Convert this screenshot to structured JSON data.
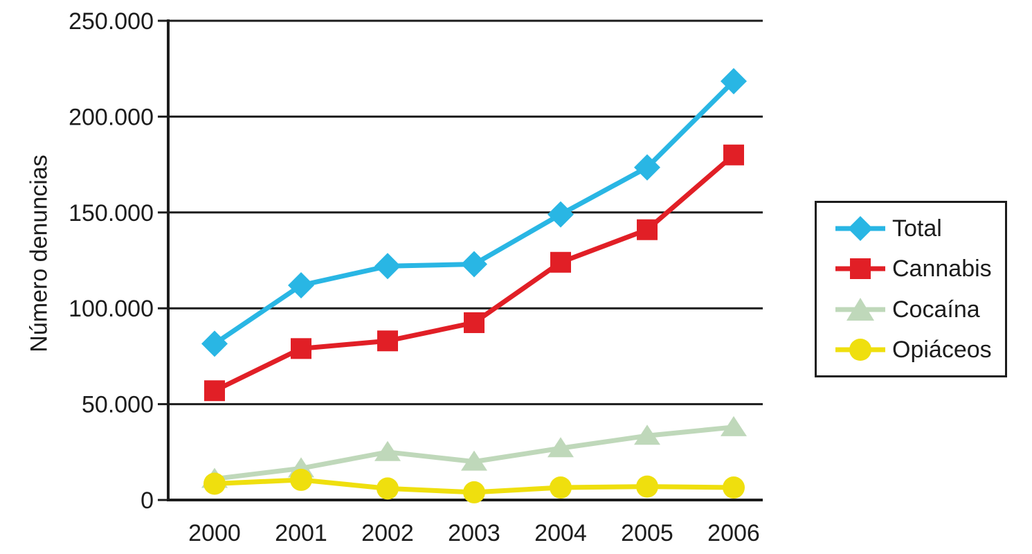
{
  "chart_data": {
    "type": "line",
    "title": "",
    "xlabel": "",
    "ylabel": "Número denuncias",
    "categories": [
      "2000",
      "2001",
      "2002",
      "2003",
      "2004",
      "2005",
      "2006"
    ],
    "ylim": [
      0,
      250000
    ],
    "ytick_step": 50000,
    "ytick_labels": [
      "0",
      "50.000",
      "100.000",
      "150.000",
      "200.000",
      "250.000"
    ],
    "grid": true,
    "legend_position": "right",
    "axis_color": "#1c1c1c",
    "series": [
      {
        "name": "Total",
        "marker": "diamond",
        "color": "#29b6e4",
        "values": [
          81500,
          112000,
          122000,
          123000,
          149000,
          173500,
          218500
        ]
      },
      {
        "name": "Cannabis",
        "marker": "square",
        "color": "#e11f26",
        "values": [
          57000,
          79000,
          83000,
          92500,
          124000,
          141000,
          180000
        ]
      },
      {
        "name": "Cocaína",
        "marker": "triangle",
        "color": "#bfd8ba",
        "values": [
          11000,
          16500,
          25000,
          20000,
          27000,
          33500,
          38000
        ]
      },
      {
        "name": "Opiáceos",
        "marker": "circle",
        "color": "#efdf0e",
        "values": [
          8500,
          10500,
          6000,
          4000,
          6500,
          7000,
          6500
        ]
      }
    ]
  }
}
